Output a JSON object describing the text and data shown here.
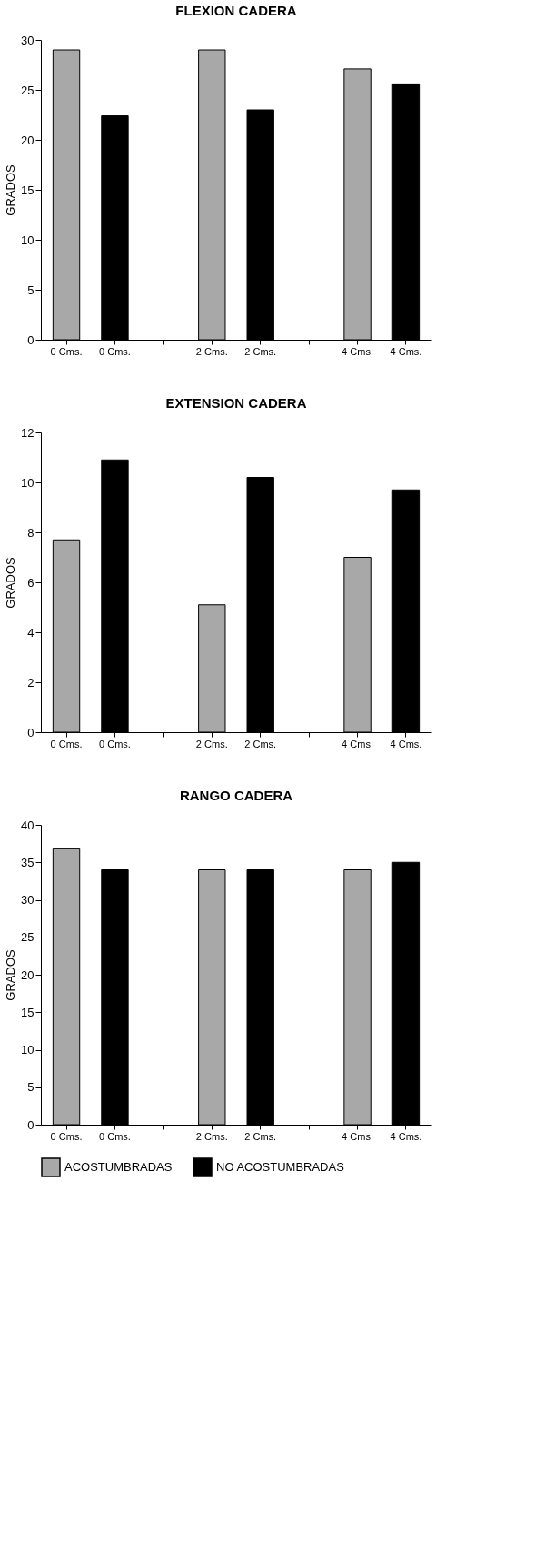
{
  "chart_data": [
    {
      "type": "bar",
      "title": "FLEXION CADERA",
      "ylabel": "GRADOS",
      "categories": [
        "0 Cms.",
        "0 Cms.",
        null,
        "2 Cms.",
        "2 Cms.",
        null,
        "4 Cms.",
        "4 Cms."
      ],
      "ylim": [
        0,
        30
      ],
      "yticks": [
        0,
        5,
        10,
        15,
        20,
        25,
        30
      ],
      "grid": false,
      "series": [
        {
          "color": "#a8a8a8",
          "values": [
            29,
            null,
            null,
            29,
            null,
            null,
            27.1,
            null
          ]
        },
        {
          "color": "#000000",
          "values": [
            null,
            22.4,
            null,
            null,
            23,
            null,
            null,
            25.6
          ]
        }
      ]
    },
    {
      "type": "bar",
      "title": "EXTENSION CADERA",
      "ylabel": "GRADOS",
      "categories": [
        "0 Cms.",
        "0 Cms.",
        null,
        "2 Cms.",
        "2 Cms.",
        null,
        "4 Cms.",
        "4 Cms."
      ],
      "ylim": [
        0,
        12
      ],
      "yticks": [
        0,
        2,
        4,
        6,
        8,
        10,
        12
      ],
      "grid": false,
      "series": [
        {
          "color": "#a8a8a8",
          "values": [
            7.7,
            null,
            null,
            5.1,
            null,
            null,
            7.0,
            null
          ]
        },
        {
          "color": "#000000",
          "values": [
            null,
            10.9,
            null,
            null,
            10.2,
            null,
            null,
            9.7
          ]
        }
      ]
    },
    {
      "type": "bar",
      "title": "RANGO CADERA",
      "ylabel": "GRADOS",
      "categories": [
        "0 Cms.",
        "0 Cms.",
        null,
        "2 Cms.",
        "2 Cms.",
        null,
        "4 Cms.",
        "4 Cms."
      ],
      "ylim": [
        0,
        40
      ],
      "yticks": [
        0,
        5,
        10,
        15,
        20,
        25,
        30,
        35,
        40
      ],
      "grid": false,
      "legend": "bottom",
      "series": [
        {
          "name": "ACOSTUMBRADAS",
          "color": "#a8a8a8",
          "values": [
            36.8,
            null,
            null,
            34,
            null,
            null,
            34,
            null
          ]
        },
        {
          "name": "NO ACOSTUMBRADAS",
          "color": "#000000",
          "values": [
            null,
            34,
            null,
            null,
            34,
            null,
            null,
            35
          ]
        }
      ]
    }
  ]
}
